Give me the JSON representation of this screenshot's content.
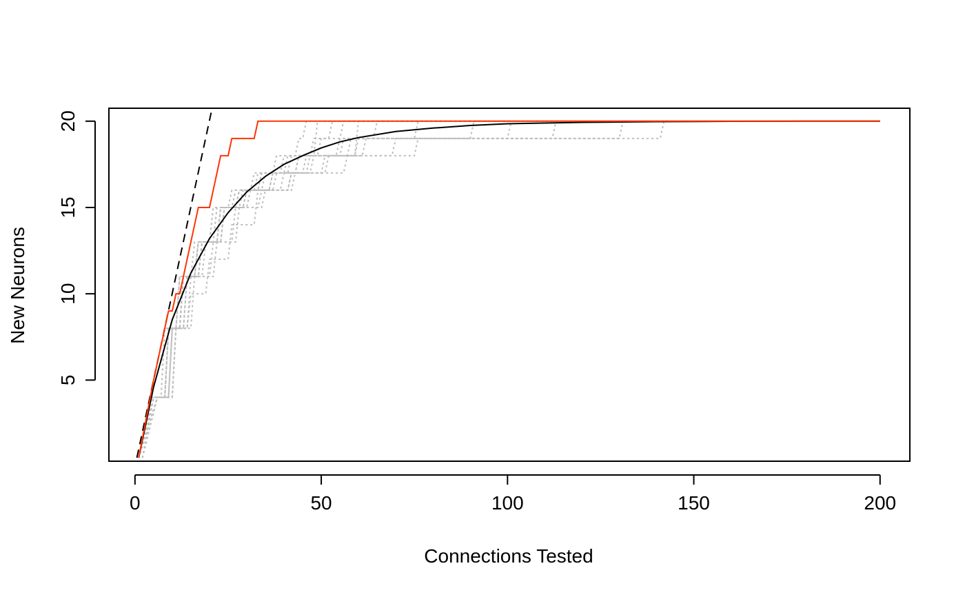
{
  "chart_data": {
    "type": "line",
    "title": "",
    "xlabel": "Connections Tested",
    "ylabel": "New Neurons",
    "xlim": [
      -7,
      208
    ],
    "ylim": [
      0.3,
      20.75
    ],
    "xticks": [
      0,
      50,
      100,
      150,
      200
    ],
    "yticks": [
      5,
      10,
      15,
      20
    ],
    "grid": false,
    "legend": "none",
    "colors": {
      "max_step": "#ff3300",
      "expected": "#000000",
      "simulations": "#bebebe",
      "upper_bound": "#000000"
    },
    "series": [
      {
        "style": "dashed",
        "color": "#000000",
        "x": [
          0.5,
          20.7
        ],
        "y": [
          0.5,
          20.75
        ]
      },
      {
        "style": "solid",
        "color": "#000000",
        "x": [
          1,
          5,
          10,
          15,
          20,
          25,
          30,
          35,
          40,
          45,
          50,
          55,
          60,
          70,
          80,
          90,
          100,
          120,
          140,
          160,
          180,
          200
        ],
        "y": [
          0.5,
          4.6,
          8.5,
          11.2,
          13.2,
          14.7,
          15.9,
          16.8,
          17.5,
          18.0,
          18.45,
          18.8,
          19.05,
          19.4,
          19.6,
          19.75,
          19.85,
          19.93,
          19.97,
          19.99,
          20.0,
          20.0
        ]
      },
      {
        "style": "step",
        "color": "#ff3300",
        "x": [
          1,
          5,
          9,
          10,
          11,
          12,
          13,
          17,
          18,
          20,
          21,
          23,
          24,
          25,
          26,
          32,
          33,
          200
        ],
        "y": [
          0.5,
          5,
          9,
          9,
          10,
          10,
          11,
          15,
          15,
          15,
          16,
          18,
          18,
          18,
          19,
          19,
          20,
          20
        ]
      }
    ],
    "simulations": [
      {
        "x": [
          1,
          5,
          9,
          13,
          17,
          22,
          28,
          35,
          44,
          58,
          142
        ],
        "y": [
          0.5,
          4,
          8,
          11,
          13,
          15,
          16,
          17,
          18,
          19,
          20
        ]
      },
      {
        "x": [
          2,
          6,
          10,
          14,
          19,
          24,
          31,
          40,
          52,
          70,
          131
        ],
        "y": [
          0.5,
          4,
          8,
          11,
          13,
          15,
          16,
          17,
          18,
          19,
          20
        ]
      },
      {
        "x": [
          1,
          5,
          8,
          12,
          16,
          21,
          27,
          34,
          42,
          55,
          113
        ],
        "y": [
          0.5,
          4,
          8,
          11,
          13,
          15,
          16,
          17,
          18,
          19,
          20
        ]
      },
      {
        "x": [
          2,
          6,
          11,
          15,
          20,
          26,
          33,
          42,
          57,
          76,
          101
        ],
        "y": [
          0.5,
          4,
          8,
          10,
          12,
          14,
          16,
          17,
          18,
          19,
          20
        ]
      },
      {
        "x": [
          1,
          4,
          9,
          12,
          17,
          23,
          29,
          37,
          47,
          62,
          91
        ],
        "y": [
          0.5,
          4,
          8,
          11,
          13,
          15,
          16,
          17,
          18,
          19,
          20
        ]
      },
      {
        "x": [
          1,
          5,
          9,
          14,
          18,
          24,
          30,
          38,
          48,
          60,
          76
        ],
        "y": [
          0.5,
          4,
          8,
          11,
          13,
          15,
          16,
          17,
          18,
          19,
          20
        ]
      },
      {
        "x": [
          2,
          5,
          10,
          13,
          18,
          23,
          30,
          37,
          44,
          56,
          65
        ],
        "y": [
          0.5,
          4,
          8,
          11,
          13,
          15,
          16,
          17,
          18,
          19,
          20
        ]
      },
      {
        "x": [
          1,
          6,
          10,
          15,
          21,
          27,
          34,
          43,
          51,
          60
        ],
        "y": [
          0.5,
          4,
          8,
          11,
          13,
          15,
          16,
          17,
          18,
          20
        ]
      },
      {
        "x": [
          1,
          5,
          8,
          13,
          17,
          22,
          27,
          33,
          40,
          48,
          56
        ],
        "y": [
          0.5,
          4,
          8,
          11,
          13,
          15,
          16,
          17,
          18,
          19,
          20
        ]
      },
      {
        "x": [
          2,
          5,
          9,
          13,
          18,
          23,
          28,
          34,
          41,
          50,
          53
        ],
        "y": [
          0.5,
          4,
          8,
          11,
          13,
          15,
          16,
          17,
          18,
          19,
          20
        ]
      },
      {
        "x": [
          1,
          6,
          11,
          16,
          22,
          28,
          35,
          42,
          46,
          49
        ],
        "y": [
          0.5,
          4,
          8,
          11,
          13,
          15,
          16,
          17,
          18,
          20
        ]
      },
      {
        "x": [
          1,
          5,
          9,
          13,
          17,
          21,
          26,
          32,
          38,
          44,
          46
        ],
        "y": [
          0.5,
          4,
          8,
          11,
          13,
          15,
          16,
          17,
          18,
          19,
          20
        ]
      }
    ]
  }
}
